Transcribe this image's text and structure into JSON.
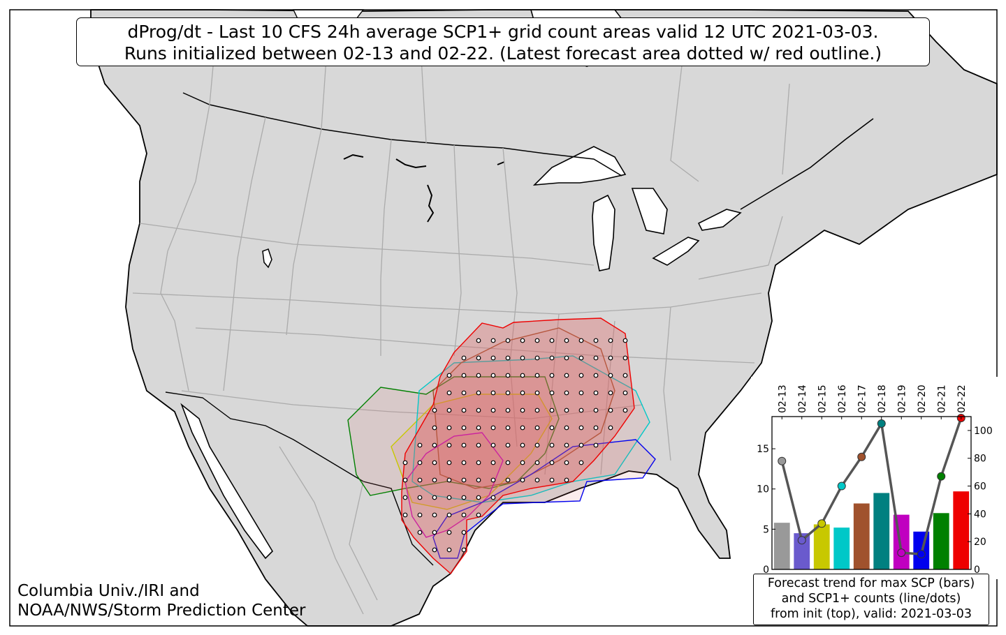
{
  "title": {
    "line1": "dProg/dt - Last 10 CFS 24h average SCP1+ grid count areas valid 12 UTC 2021-03-03.",
    "line2": "Runs initialized between 02-13 and 02-22. (Latest forecast area dotted w/ red outline.)"
  },
  "credit": {
    "line1": "Columbia Univ./IRI and",
    "line2": "NOAA/NWS/Storm Prediction Center"
  },
  "colors": {
    "land": "#d8d8d8",
    "water": "#ffffff",
    "coast": "#000000",
    "state_border": "#ababab",
    "area_fill": "#e06060"
  },
  "inset_caption": {
    "line1": "Forecast trend for max SCP (bars)",
    "line2": "and SCP1+ counts (line/dots)",
    "line3": "from init (top), valid: 2021-03-03"
  },
  "chart_data": {
    "type": "bar",
    "categories": [
      "02-13",
      "02-14",
      "02-15",
      "02-16",
      "02-17",
      "02-18",
      "02-19",
      "02-20",
      "02-21",
      "02-22"
    ],
    "bar_values": [
      5.8,
      4.5,
      5.6,
      5.2,
      8.2,
      9.5,
      6.8,
      4.7,
      7.0,
      9.7
    ],
    "count_values": [
      78,
      21,
      33,
      60,
      81,
      105,
      12,
      11,
      67,
      109
    ],
    "colors": [
      "#999999",
      "#6a5acd",
      "#c8c800",
      "#00c8c8",
      "#a0522d",
      "#008080",
      "#c000c0",
      "#0000ee",
      "#008000",
      "#ee0000"
    ],
    "y_left": {
      "lim": [
        0,
        19
      ],
      "ticks": [
        0,
        5,
        10,
        15
      ]
    },
    "y_right": {
      "lim": [
        0,
        110
      ],
      "ticks": [
        0,
        20,
        40,
        60,
        80,
        100
      ]
    },
    "line_color": "#555555"
  }
}
